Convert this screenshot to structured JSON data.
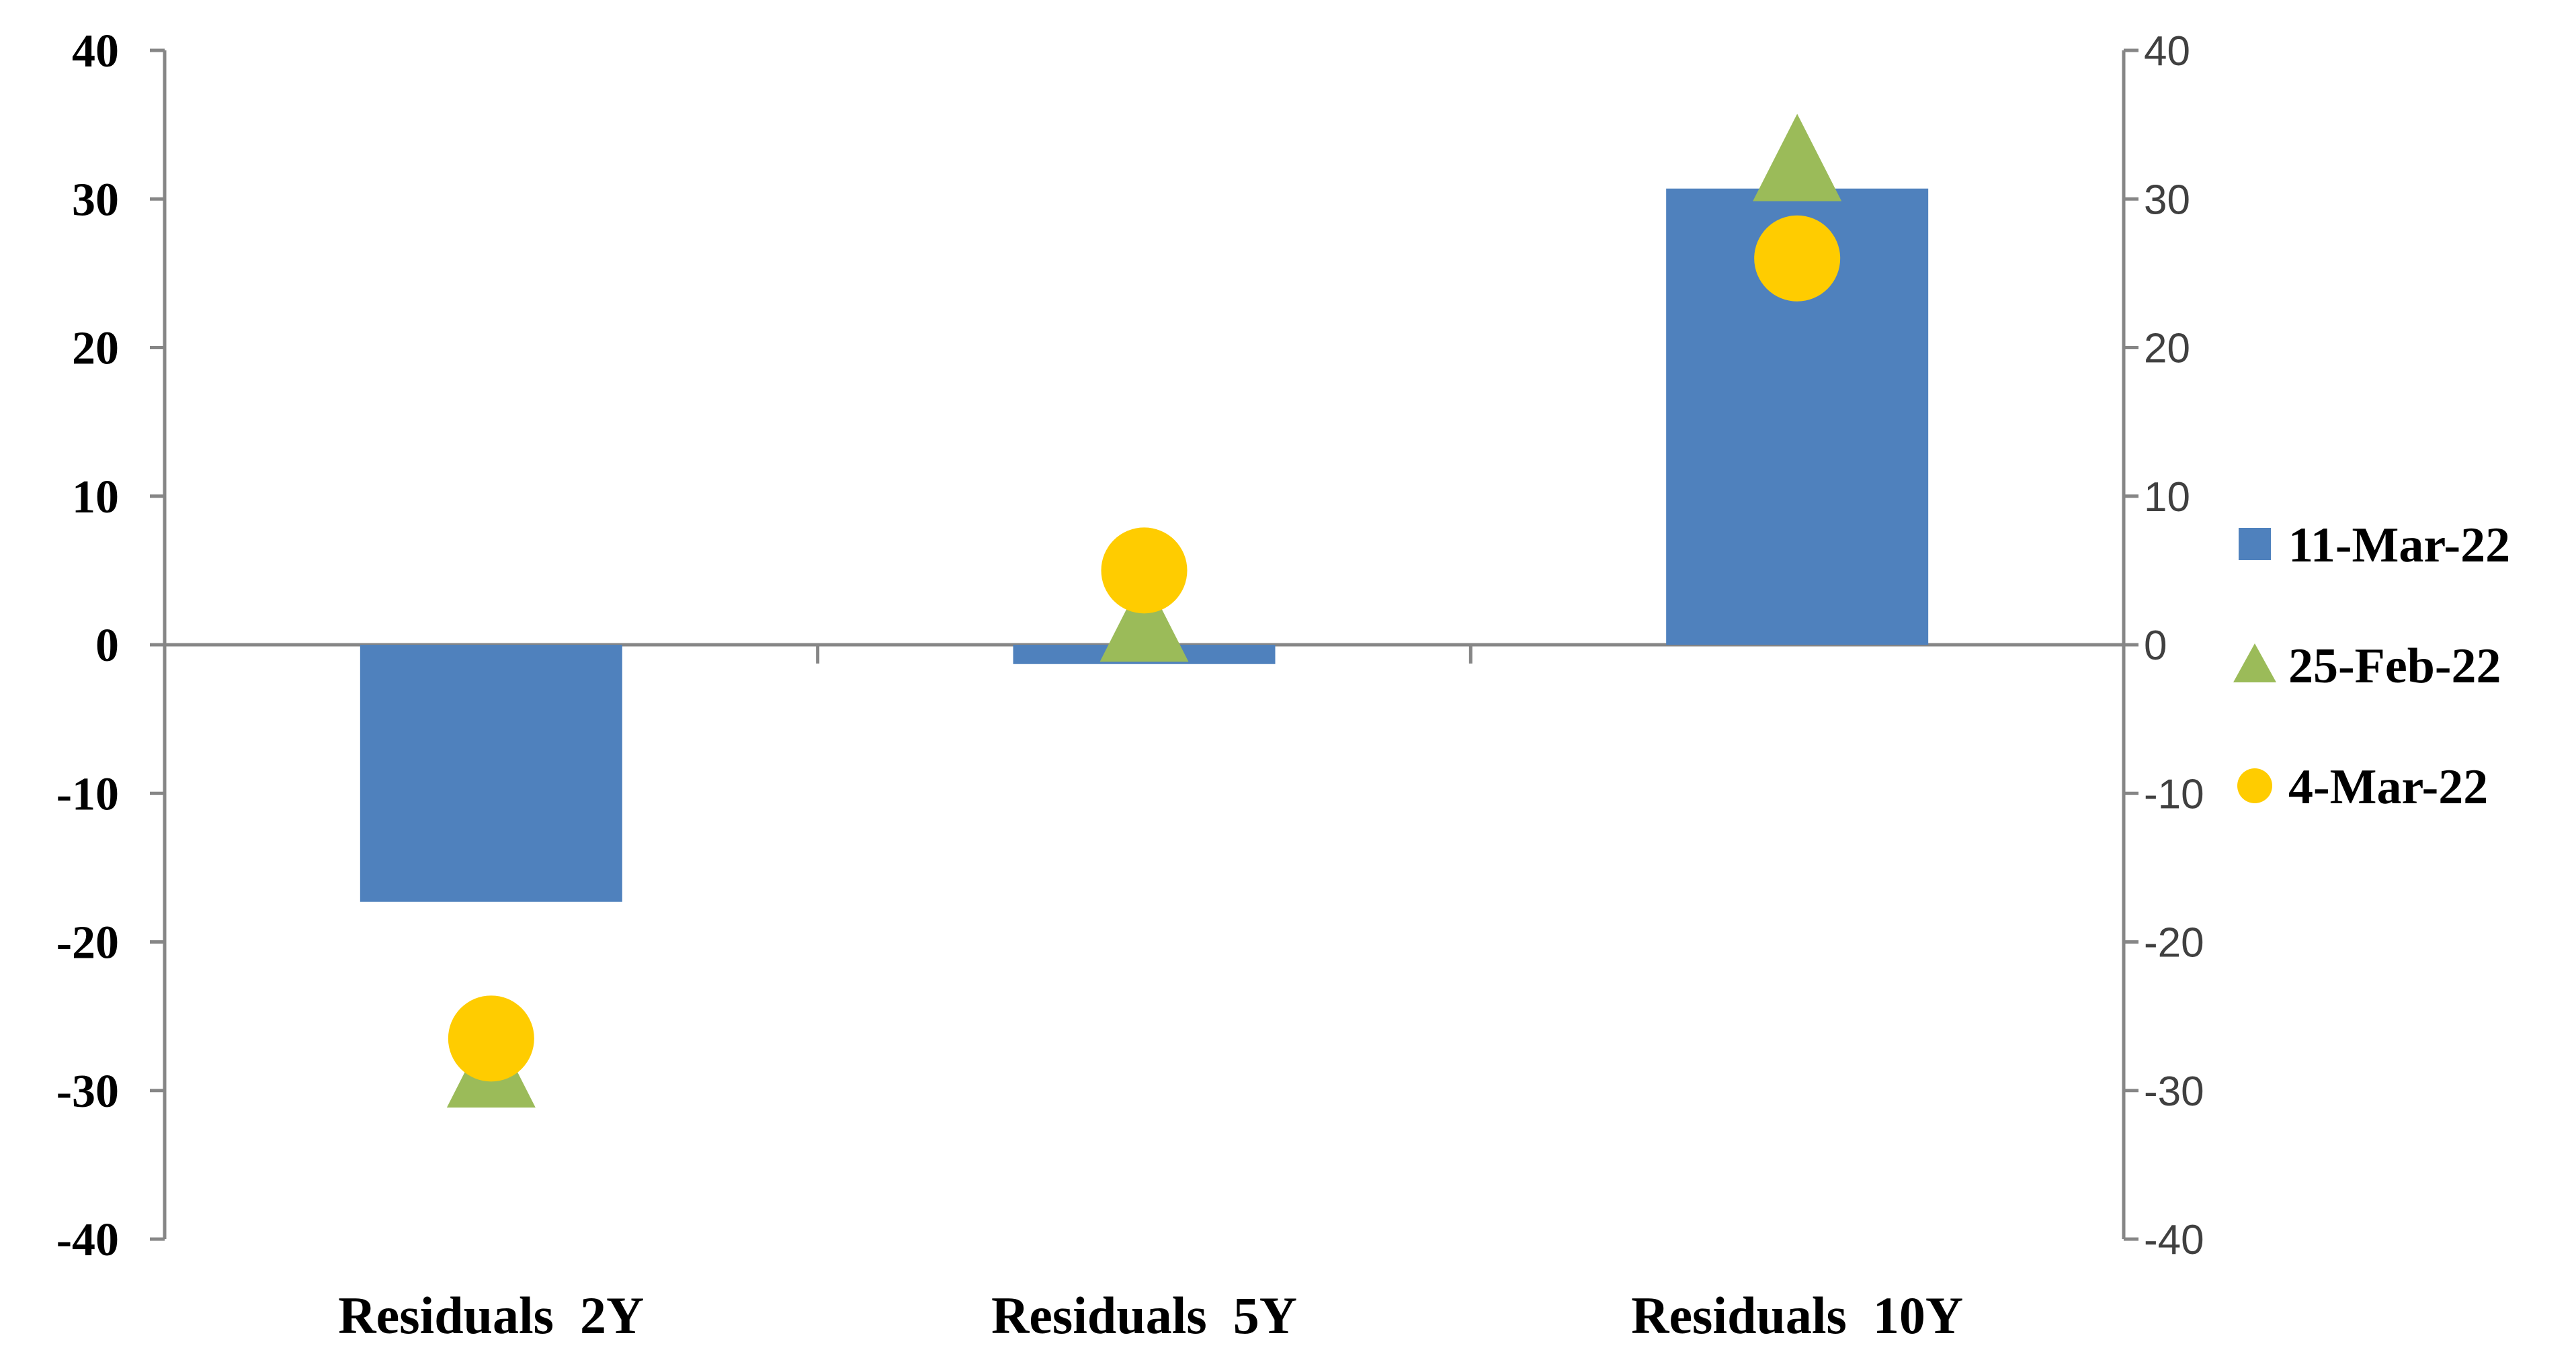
{
  "chart_data": {
    "type": "bar",
    "categories": [
      "Residuals  2Y",
      "Residuals  5Y",
      "Residuals  10Y"
    ],
    "series": [
      {
        "name": "11-Mar-22",
        "kind": "bar",
        "marker": "square",
        "color": "#4F81BD",
        "values": [
          -17.3,
          -1.3,
          30.7
        ]
      },
      {
        "name": "25-Feb-22",
        "kind": "marker",
        "marker": "triangle",
        "color": "#9BBB59",
        "values": [
          -28.5,
          1.5,
          32.5
        ]
      },
      {
        "name": "4-Mar-22",
        "kind": "marker",
        "marker": "circle",
        "color": "#FFCC00",
        "values": [
          -26.5,
          5.0,
          26.0
        ]
      }
    ],
    "y_left": {
      "min": -40,
      "max": 40,
      "step": 10,
      "tick_labels": [
        "-40",
        "-30",
        "-20",
        "-10",
        "0",
        "10",
        "20",
        "30",
        "40"
      ]
    },
    "y_right": {
      "min": -40,
      "max": 40,
      "step": 10,
      "tick_labels": [
        "-40",
        "-30",
        "-20",
        "-10",
        "0",
        "10",
        "20",
        "30",
        "40"
      ]
    },
    "grid": false,
    "legend_position": "right",
    "title": "",
    "xlabel": "",
    "ylabel": ""
  }
}
